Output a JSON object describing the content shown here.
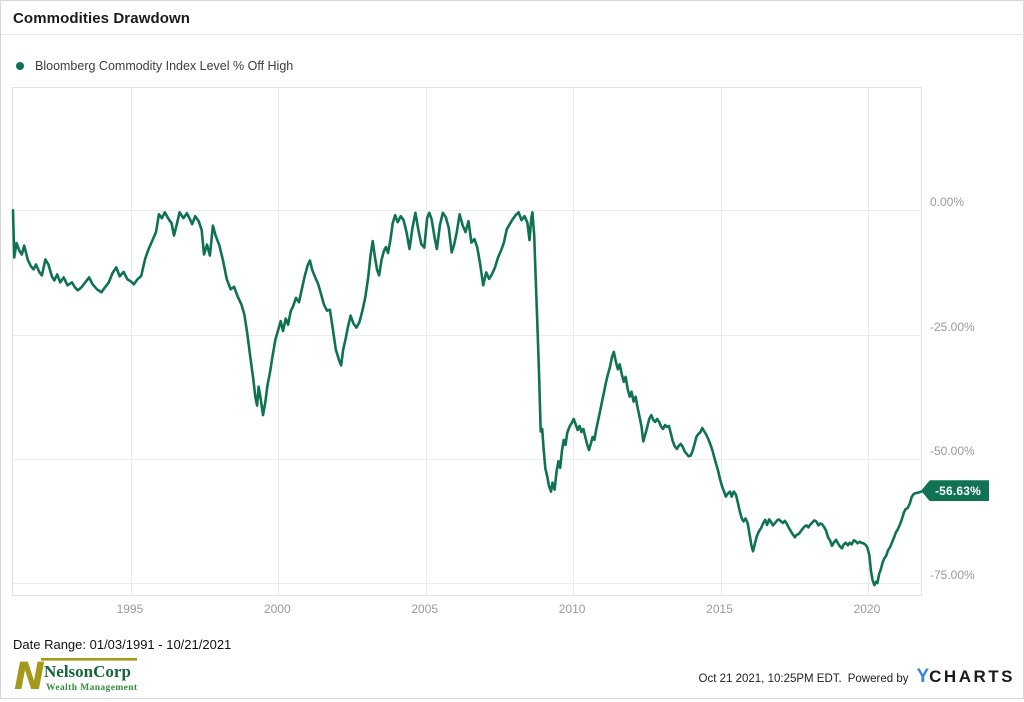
{
  "header": {
    "title": "Commodities Drawdown"
  },
  "legend": {
    "label": "Bloomberg Commodity Index Level % Off High"
  },
  "footer": {
    "date_range": "Date Range: 01/03/1991 - 10/21/2021",
    "timestamp": "Oct 21 2021, 10:25PM EDT.",
    "powered_by": "Powered by",
    "ycharts_y": "Y",
    "ycharts_rest": "CHARTS",
    "logo": {
      "mark": "N",
      "line1": "NelsonCorp",
      "line2": "Wealth Management"
    }
  },
  "colors": {
    "line": "#0f7253",
    "badge_bg": "#0f7253",
    "badge_text": "#ffffff",
    "grid": "#ececec",
    "frame": "#e2e2e2",
    "tick_text": "#9a9a9a",
    "nelson_olive": "#a39a1a",
    "nelson_green": "#17653a",
    "nelson_light_green": "#368c3e",
    "ycharts_blue": "#3585e0"
  },
  "chart_data": {
    "type": "line",
    "title": "Commodities Drawdown",
    "series_name": "Bloomberg Commodity Index Level % Off High",
    "x_range": [
      1991.0,
      2021.8
    ],
    "y_range": [
      -77.4,
      24.6
    ],
    "x_ticks": [
      1995,
      2000,
      2005,
      2010,
      2015,
      2020
    ],
    "y_ticks": [
      {
        "v": 0,
        "label": "0.00%"
      },
      {
        "v": -25,
        "label": "-25.00%"
      },
      {
        "v": -50,
        "label": "-50.00%"
      },
      {
        "v": -75,
        "label": "-75.00%"
      }
    ],
    "grid": true,
    "legend_position": "top-left",
    "last_value": -56.63,
    "last_value_label": "-56.63%",
    "points": [
      [
        1991.0,
        0
      ],
      [
        1991.04,
        -9.5
      ],
      [
        1991.12,
        -6.6
      ],
      [
        1991.22,
        -8.2
      ],
      [
        1991.3,
        -8.9
      ],
      [
        1991.38,
        -7.1
      ],
      [
        1991.5,
        -9.9
      ],
      [
        1991.6,
        -11.2
      ],
      [
        1991.7,
        -11.9
      ],
      [
        1991.78,
        -10.9
      ],
      [
        1991.9,
        -12.5
      ],
      [
        1991.98,
        -13.1
      ],
      [
        1992.1,
        -9.9
      ],
      [
        1992.2,
        -10.9
      ],
      [
        1992.32,
        -13.3
      ],
      [
        1992.4,
        -14.1
      ],
      [
        1992.5,
        -12.9
      ],
      [
        1992.6,
        -14.5
      ],
      [
        1992.72,
        -13.5
      ],
      [
        1992.85,
        -15.1
      ],
      [
        1993.0,
        -14.5
      ],
      [
        1993.1,
        -15.5
      ],
      [
        1993.2,
        -16.1
      ],
      [
        1993.32,
        -15.5
      ],
      [
        1993.45,
        -14.5
      ],
      [
        1993.58,
        -13.5
      ],
      [
        1993.7,
        -14.9
      ],
      [
        1993.85,
        -15.9
      ],
      [
        1994.0,
        -16.5
      ],
      [
        1994.12,
        -15.5
      ],
      [
        1994.25,
        -14.5
      ],
      [
        1994.38,
        -12.6
      ],
      [
        1994.5,
        -11.5
      ],
      [
        1994.62,
        -13.3
      ],
      [
        1994.75,
        -12.4
      ],
      [
        1994.88,
        -13.9
      ],
      [
        1995.0,
        -14.3
      ],
      [
        1995.1,
        -14.9
      ],
      [
        1995.22,
        -13.9
      ],
      [
        1995.35,
        -13.2
      ],
      [
        1995.48,
        -9.8
      ],
      [
        1995.6,
        -7.8
      ],
      [
        1995.72,
        -6.2
      ],
      [
        1995.85,
        -4.4
      ],
      [
        1995.95,
        -0.8
      ],
      [
        1996.05,
        -1.6
      ],
      [
        1996.15,
        -0.4
      ],
      [
        1996.28,
        -1.8
      ],
      [
        1996.38,
        -2.6
      ],
      [
        1996.46,
        -5.1
      ],
      [
        1996.55,
        -3.0
      ],
      [
        1996.65,
        -0.4
      ],
      [
        1996.78,
        -1.6
      ],
      [
        1996.9,
        -0.6
      ],
      [
        1997.0,
        -1.8
      ],
      [
        1997.08,
        -2.8
      ],
      [
        1997.18,
        -1.2
      ],
      [
        1997.3,
        -2.2
      ],
      [
        1997.4,
        -4.0
      ],
      [
        1997.48,
        -8.9
      ],
      [
        1997.58,
        -6.9
      ],
      [
        1997.68,
        -9.1
      ],
      [
        1997.78,
        -3.1
      ],
      [
        1997.88,
        -5.2
      ],
      [
        1998.0,
        -7.1
      ],
      [
        1998.12,
        -10.0
      ],
      [
        1998.25,
        -13.8
      ],
      [
        1998.38,
        -15.9
      ],
      [
        1998.5,
        -15.4
      ],
      [
        1998.62,
        -17.3
      ],
      [
        1998.75,
        -19.0
      ],
      [
        1998.85,
        -21.0
      ],
      [
        1998.95,
        -25.0
      ],
      [
        1999.05,
        -29.5
      ],
      [
        1999.15,
        -34.0
      ],
      [
        1999.22,
        -37.5
      ],
      [
        1999.28,
        -39.3
      ],
      [
        1999.33,
        -35.5
      ],
      [
        1999.4,
        -37.8
      ],
      [
        1999.48,
        -41.2
      ],
      [
        1999.56,
        -38.5
      ],
      [
        1999.63,
        -35.3
      ],
      [
        1999.72,
        -32.5
      ],
      [
        1999.8,
        -29.5
      ],
      [
        1999.9,
        -26.0
      ],
      [
        2000.0,
        -24.0
      ],
      [
        2000.08,
        -22.3
      ],
      [
        2000.16,
        -24.3
      ],
      [
        2000.25,
        -21.8
      ],
      [
        2000.33,
        -23.0
      ],
      [
        2000.42,
        -20.3
      ],
      [
        2000.5,
        -19.3
      ],
      [
        2000.6,
        -17.6
      ],
      [
        2000.7,
        -18.5
      ],
      [
        2000.8,
        -15.8
      ],
      [
        2000.9,
        -13.1
      ],
      [
        2001.0,
        -11.0
      ],
      [
        2001.07,
        -10.1
      ],
      [
        2001.15,
        -12.0
      ],
      [
        2001.25,
        -13.5
      ],
      [
        2001.35,
        -14.8
      ],
      [
        2001.45,
        -16.9
      ],
      [
        2001.55,
        -19.0
      ],
      [
        2001.65,
        -20.2
      ],
      [
        2001.75,
        -20.0
      ],
      [
        2001.85,
        -24.0
      ],
      [
        2001.95,
        -28.0
      ],
      [
        2002.05,
        -30.0
      ],
      [
        2002.13,
        -31.2
      ],
      [
        2002.2,
        -28.0
      ],
      [
        2002.28,
        -26.0
      ],
      [
        2002.35,
        -23.8
      ],
      [
        2002.45,
        -21.2
      ],
      [
        2002.55,
        -22.8
      ],
      [
        2002.65,
        -23.6
      ],
      [
        2002.75,
        -22.5
      ],
      [
        2002.85,
        -20.3
      ],
      [
        2002.95,
        -17.5
      ],
      [
        2003.05,
        -13.5
      ],
      [
        2003.13,
        -9.0
      ],
      [
        2003.2,
        -6.2
      ],
      [
        2003.28,
        -9.5
      ],
      [
        2003.35,
        -12.0
      ],
      [
        2003.42,
        -13.1
      ],
      [
        2003.5,
        -10.0
      ],
      [
        2003.58,
        -8.2
      ],
      [
        2003.65,
        -7.4
      ],
      [
        2003.72,
        -8.6
      ],
      [
        2003.8,
        -6.0
      ],
      [
        2003.88,
        -2.6
      ],
      [
        2003.96,
        -1.0
      ],
      [
        2004.05,
        -2.4
      ],
      [
        2004.15,
        -1.2
      ],
      [
        2004.25,
        -2.0
      ],
      [
        2004.35,
        -4.5
      ],
      [
        2004.45,
        -7.8
      ],
      [
        2004.55,
        -3.5
      ],
      [
        2004.65,
        -0.5
      ],
      [
        2004.75,
        -4.0
      ],
      [
        2004.85,
        -6.8
      ],
      [
        2004.95,
        -7.5
      ],
      [
        2005.05,
        -1.5
      ],
      [
        2005.12,
        -0.5
      ],
      [
        2005.2,
        -1.8
      ],
      [
        2005.3,
        -5.5
      ],
      [
        2005.38,
        -7.8
      ],
      [
        2005.48,
        -3.0
      ],
      [
        2005.58,
        -0.5
      ],
      [
        2005.68,
        -1.4
      ],
      [
        2005.78,
        -3.5
      ],
      [
        2005.88,
        -8.5
      ],
      [
        2005.96,
        -7.0
      ],
      [
        2006.05,
        -4.5
      ],
      [
        2006.15,
        -0.8
      ],
      [
        2006.25,
        -3.0
      ],
      [
        2006.35,
        -4.4
      ],
      [
        2006.45,
        -2.2
      ],
      [
        2006.55,
        -6.5
      ],
      [
        2006.65,
        -5.8
      ],
      [
        2006.75,
        -7.5
      ],
      [
        2006.85,
        -11.0
      ],
      [
        2006.95,
        -15.1
      ],
      [
        2007.05,
        -12.5
      ],
      [
        2007.15,
        -13.8
      ],
      [
        2007.25,
        -12.8
      ],
      [
        2007.35,
        -11.5
      ],
      [
        2007.45,
        -9.5
      ],
      [
        2007.55,
        -8.2
      ],
      [
        2007.65,
        -6.5
      ],
      [
        2007.75,
        -3.8
      ],
      [
        2007.85,
        -2.8
      ],
      [
        2007.95,
        -1.8
      ],
      [
        2008.05,
        -1.0
      ],
      [
        2008.15,
        -0.4
      ],
      [
        2008.25,
        -2.0
      ],
      [
        2008.35,
        -1.2
      ],
      [
        2008.45,
        -2.5
      ],
      [
        2008.52,
        -6.0
      ],
      [
        2008.58,
        -1.5
      ],
      [
        2008.62,
        -0.4
      ],
      [
        2008.68,
        -5.0
      ],
      [
        2008.72,
        -12.0
      ],
      [
        2008.78,
        -22.0
      ],
      [
        2008.84,
        -32.0
      ],
      [
        2008.9,
        -44.5
      ],
      [
        2008.95,
        -44.0
      ],
      [
        2009.0,
        -48.0
      ],
      [
        2009.06,
        -52.0
      ],
      [
        2009.12,
        -53.5
      ],
      [
        2009.18,
        -55.5
      ],
      [
        2009.25,
        -56.6
      ],
      [
        2009.3,
        -54.8
      ],
      [
        2009.37,
        -56.2
      ],
      [
        2009.44,
        -52.5
      ],
      [
        2009.5,
        -50.5
      ],
      [
        2009.56,
        -51.8
      ],
      [
        2009.62,
        -48.5
      ],
      [
        2009.68,
        -46.2
      ],
      [
        2009.74,
        -47.2
      ],
      [
        2009.8,
        -44.8
      ],
      [
        2009.88,
        -43.5
      ],
      [
        2009.95,
        -42.8
      ],
      [
        2010.02,
        -42.0
      ],
      [
        2010.08,
        -43.0
      ],
      [
        2010.15,
        -44.2
      ],
      [
        2010.22,
        -43.4
      ],
      [
        2010.28,
        -44.6
      ],
      [
        2010.35,
        -44.0
      ],
      [
        2010.42,
        -45.8
      ],
      [
        2010.48,
        -47.2
      ],
      [
        2010.54,
        -48.2
      ],
      [
        2010.6,
        -47.0
      ],
      [
        2010.66,
        -45.6
      ],
      [
        2010.72,
        -46.2
      ],
      [
        2010.78,
        -44.2
      ],
      [
        2010.85,
        -42.2
      ],
      [
        2010.92,
        -40.2
      ],
      [
        2010.98,
        -38.5
      ],
      [
        2011.05,
        -36.5
      ],
      [
        2011.12,
        -34.5
      ],
      [
        2011.18,
        -33.0
      ],
      [
        2011.25,
        -31.5
      ],
      [
        2011.32,
        -29.5
      ],
      [
        2011.38,
        -28.5
      ],
      [
        2011.45,
        -30.5
      ],
      [
        2011.52,
        -32.0
      ],
      [
        2011.58,
        -31.0
      ],
      [
        2011.65,
        -33.0
      ],
      [
        2011.72,
        -34.5
      ],
      [
        2011.78,
        -33.5
      ],
      [
        2011.85,
        -36.0
      ],
      [
        2011.92,
        -37.5
      ],
      [
        2011.98,
        -36.5
      ],
      [
        2012.05,
        -38.5
      ],
      [
        2012.12,
        -37.5
      ],
      [
        2012.18,
        -39.5
      ],
      [
        2012.25,
        -41.5
      ],
      [
        2012.32,
        -43.5
      ],
      [
        2012.38,
        -46.5
      ],
      [
        2012.45,
        -45.0
      ],
      [
        2012.52,
        -43.5
      ],
      [
        2012.58,
        -42.0
      ],
      [
        2012.65,
        -41.2
      ],
      [
        2012.72,
        -42.2
      ],
      [
        2012.78,
        -42.6
      ],
      [
        2012.85,
        -42.0
      ],
      [
        2012.92,
        -42.6
      ],
      [
        2012.98,
        -43.5
      ],
      [
        2013.05,
        -44.0
      ],
      [
        2013.12,
        -43.2
      ],
      [
        2013.18,
        -43.6
      ],
      [
        2013.25,
        -43.4
      ],
      [
        2013.32,
        -45.0
      ],
      [
        2013.38,
        -46.5
      ],
      [
        2013.45,
        -47.5
      ],
      [
        2013.52,
        -48.0
      ],
      [
        2013.58,
        -47.4
      ],
      [
        2013.65,
        -47.0
      ],
      [
        2013.72,
        -47.6
      ],
      [
        2013.78,
        -48.5
      ],
      [
        2013.85,
        -49.0
      ],
      [
        2013.92,
        -49.5
      ],
      [
        2013.98,
        -49.4
      ],
      [
        2014.05,
        -48.5
      ],
      [
        2014.12,
        -47.0
      ],
      [
        2014.18,
        -45.6
      ],
      [
        2014.25,
        -45.0
      ],
      [
        2014.32,
        -44.6
      ],
      [
        2014.38,
        -43.8
      ],
      [
        2014.45,
        -44.5
      ],
      [
        2014.52,
        -45.2
      ],
      [
        2014.58,
        -46.0
      ],
      [
        2014.65,
        -47.0
      ],
      [
        2014.72,
        -48.2
      ],
      [
        2014.78,
        -49.5
      ],
      [
        2014.85,
        -51.0
      ],
      [
        2014.92,
        -52.5
      ],
      [
        2014.98,
        -54.0
      ],
      [
        2015.05,
        -55.5
      ],
      [
        2015.12,
        -56.6
      ],
      [
        2015.18,
        -57.6
      ],
      [
        2015.25,
        -57.0
      ],
      [
        2015.32,
        -56.6
      ],
      [
        2015.38,
        -57.6
      ],
      [
        2015.45,
        -56.6
      ],
      [
        2015.52,
        -57.2
      ],
      [
        2015.58,
        -58.6
      ],
      [
        2015.65,
        -60.5
      ],
      [
        2015.72,
        -62.0
      ],
      [
        2015.78,
        -62.6
      ],
      [
        2015.85,
        -62.0
      ],
      [
        2015.92,
        -63.0
      ],
      [
        2015.98,
        -65.0
      ],
      [
        2016.05,
        -67.5
      ],
      [
        2016.1,
        -68.6
      ],
      [
        2016.17,
        -67.0
      ],
      [
        2016.23,
        -65.6
      ],
      [
        2016.3,
        -64.6
      ],
      [
        2016.38,
        -63.9
      ],
      [
        2016.45,
        -62.9
      ],
      [
        2016.52,
        -62.3
      ],
      [
        2016.58,
        -63.3
      ],
      [
        2016.65,
        -62.2
      ],
      [
        2016.72,
        -62.8
      ],
      [
        2016.78,
        -63.4
      ],
      [
        2016.85,
        -62.9
      ],
      [
        2016.92,
        -62.4
      ],
      [
        2016.98,
        -62.2
      ],
      [
        2017.05,
        -62.6
      ],
      [
        2017.12,
        -62.9
      ],
      [
        2017.18,
        -62.5
      ],
      [
        2017.25,
        -63.1
      ],
      [
        2017.32,
        -63.9
      ],
      [
        2017.38,
        -64.5
      ],
      [
        2017.45,
        -65.2
      ],
      [
        2017.52,
        -65.8
      ],
      [
        2017.58,
        -65.3
      ],
      [
        2017.65,
        -65.1
      ],
      [
        2017.72,
        -64.6
      ],
      [
        2017.78,
        -64.1
      ],
      [
        2017.85,
        -63.6
      ],
      [
        2017.92,
        -63.4
      ],
      [
        2017.98,
        -63.8
      ],
      [
        2018.05,
        -63.2
      ],
      [
        2018.12,
        -62.8
      ],
      [
        2018.18,
        -62.4
      ],
      [
        2018.25,
        -62.6
      ],
      [
        2018.32,
        -63.4
      ],
      [
        2018.38,
        -63.0
      ],
      [
        2018.45,
        -63.2
      ],
      [
        2018.52,
        -63.8
      ],
      [
        2018.58,
        -64.5
      ],
      [
        2018.65,
        -65.8
      ],
      [
        2018.72,
        -66.5
      ],
      [
        2018.78,
        -67.5
      ],
      [
        2018.85,
        -66.8
      ],
      [
        2018.92,
        -66.3
      ],
      [
        2018.98,
        -67.0
      ],
      [
        2019.05,
        -67.6
      ],
      [
        2019.12,
        -68.0
      ],
      [
        2019.18,
        -67.2
      ],
      [
        2019.25,
        -66.9
      ],
      [
        2019.32,
        -67.4
      ],
      [
        2019.38,
        -66.9
      ],
      [
        2019.45,
        -67.2
      ],
      [
        2019.52,
        -66.4
      ],
      [
        2019.58,
        -66.6
      ],
      [
        2019.65,
        -67.0
      ],
      [
        2019.72,
        -66.7
      ],
      [
        2019.78,
        -66.9
      ],
      [
        2019.85,
        -67.0
      ],
      [
        2019.92,
        -67.3
      ],
      [
        2019.98,
        -67.8
      ],
      [
        2020.05,
        -69.5
      ],
      [
        2020.1,
        -72.5
      ],
      [
        2020.16,
        -74.5
      ],
      [
        2020.22,
        -75.4
      ],
      [
        2020.28,
        -74.7
      ],
      [
        2020.32,
        -75.0
      ],
      [
        2020.38,
        -73.2
      ],
      [
        2020.44,
        -72.2
      ],
      [
        2020.5,
        -70.8
      ],
      [
        2020.56,
        -70.0
      ],
      [
        2020.62,
        -69.5
      ],
      [
        2020.68,
        -68.4
      ],
      [
        2020.75,
        -67.8
      ],
      [
        2020.82,
        -66.8
      ],
      [
        2020.88,
        -65.9
      ],
      [
        2020.95,
        -64.8
      ],
      [
        2021.02,
        -64.1
      ],
      [
        2021.08,
        -63.3
      ],
      [
        2021.15,
        -62.2
      ],
      [
        2021.22,
        -60.8
      ],
      [
        2021.28,
        -60.1
      ],
      [
        2021.35,
        -59.9
      ],
      [
        2021.42,
        -59.0
      ],
      [
        2021.48,
        -57.7
      ],
      [
        2021.55,
        -57.1
      ],
      [
        2021.62,
        -56.9
      ],
      [
        2021.7,
        -56.8
      ],
      [
        2021.8,
        -56.63
      ]
    ]
  }
}
